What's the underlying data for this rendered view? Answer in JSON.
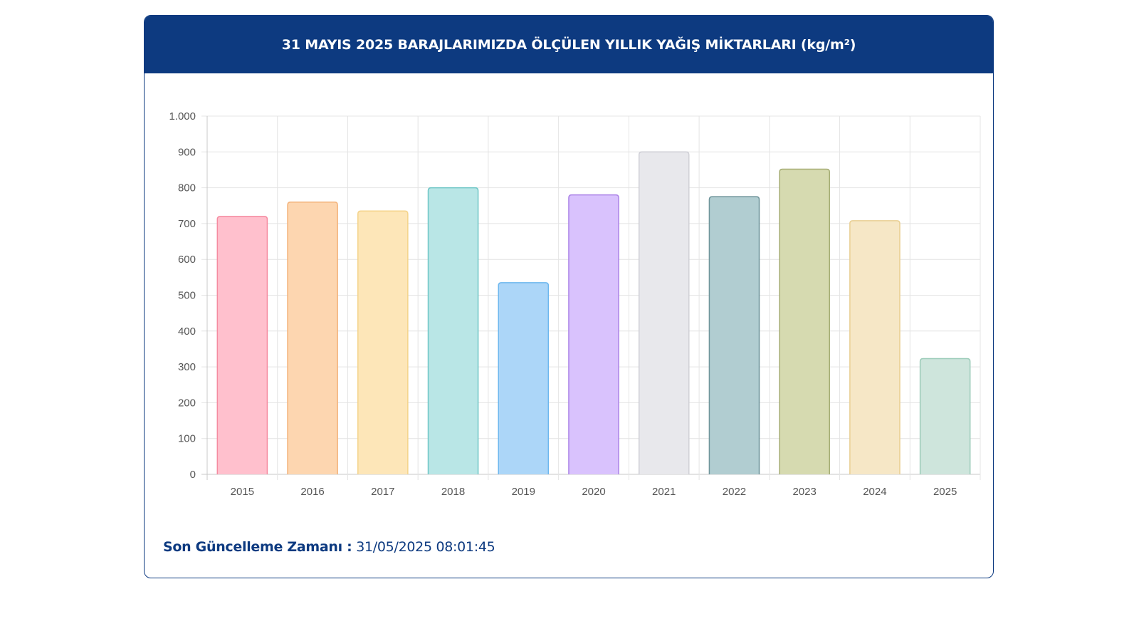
{
  "header": {
    "title": "31 MAYIS 2025 BARAJLARIMIZDA ÖLÇÜLEN YILLIK YAĞIŞ MİKTARLARI (kg/m²)"
  },
  "footer": {
    "label": "Son Güncelleme Zamanı :",
    "value": "31/05/2025 08:01:45"
  },
  "colors": {
    "header_bg": "#0d3a80",
    "accent_text": "#0d3a80"
  },
  "chart_data": {
    "type": "bar",
    "title": "31 MAYIS 2025 BARAJLARIMIZDA ÖLÇÜLEN YILLIK YAĞIŞ MİKTARLARI (kg/m²)",
    "xlabel": "",
    "ylabel": "",
    "categories": [
      "2015",
      "2016",
      "2017",
      "2018",
      "2019",
      "2020",
      "2021",
      "2022",
      "2023",
      "2024",
      "2025"
    ],
    "values": [
      720,
      760,
      735,
      800,
      535,
      780,
      900,
      775,
      852,
      708,
      323
    ],
    "ylim": [
      0,
      1000
    ],
    "yticks": [
      0,
      100,
      200,
      300,
      400,
      500,
      600,
      700,
      800,
      900,
      1000
    ],
    "ytick_labels": [
      "0",
      "100",
      "200",
      "300",
      "400",
      "500",
      "600",
      "700",
      "800",
      "900",
      "1.000"
    ],
    "grid": true,
    "legend": "none",
    "bar_fills": [
      "#ffc0cd",
      "#fdd6b0",
      "#fde6b8",
      "#b9e6e6",
      "#acd6f8",
      "#d9c2fd",
      "#e8e8ec",
      "#b1cdd1",
      "#d6dab0",
      "#f6e7c6",
      "#cee5dc"
    ],
    "bar_strokes": [
      "#f58ba0",
      "#f3b27a",
      "#f4d38a",
      "#6fc6c6",
      "#6db7ee",
      "#ac84e7",
      "#cfcfd6",
      "#6f959b",
      "#a5ac73",
      "#e9cf93",
      "#9cccb9"
    ]
  }
}
